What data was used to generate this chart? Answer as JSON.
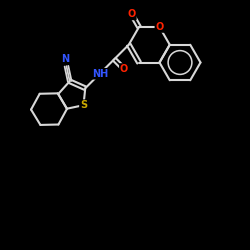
{
  "bg": "#000000",
  "bc": "#d8d8d8",
  "sc": "#ccaa00",
  "nc": "#3355ff",
  "oc": "#ff2200",
  "lw": 1.5,
  "figsize": [
    2.5,
    2.5
  ],
  "dpi": 100,
  "xlim": [
    0,
    10
  ],
  "ylim": [
    0,
    10
  ]
}
